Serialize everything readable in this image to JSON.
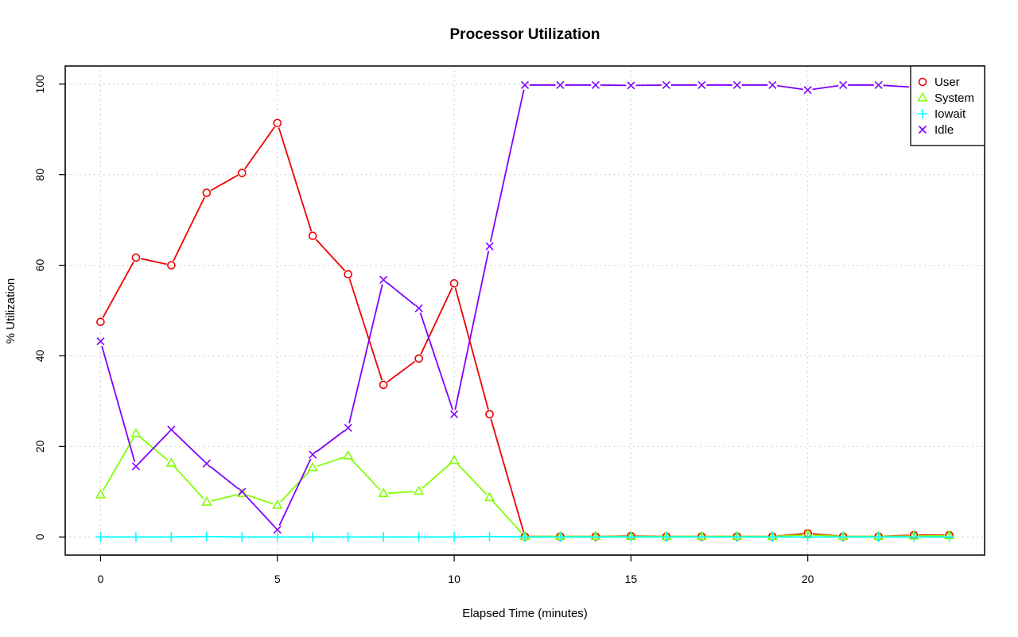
{
  "chart_data": {
    "type": "line",
    "title": "Processor Utilization",
    "xlabel": "Elapsed Time (minutes)",
    "ylabel": "% Utilization",
    "xlim": [
      -1,
      25
    ],
    "ylim": [
      -4,
      104
    ],
    "xticks": [
      0,
      5,
      10,
      15,
      20
    ],
    "yticks": [
      0,
      20,
      40,
      60,
      80,
      100
    ],
    "grid": true,
    "legend_position": "top-right",
    "x": [
      0,
      1,
      2,
      3,
      4,
      5,
      6,
      7,
      8,
      9,
      10,
      11,
      12,
      13,
      14,
      15,
      16,
      17,
      18,
      19,
      20,
      21,
      22,
      23,
      24
    ],
    "series": [
      {
        "name": "User",
        "color": "#ee0000",
        "marker": "circle",
        "values": [
          47.5,
          61.7,
          60.0,
          76.0,
          80.4,
          91.4,
          66.5,
          58.0,
          33.6,
          39.4,
          56.0,
          27.1,
          0.1,
          0.1,
          0.1,
          0.2,
          0.1,
          0.1,
          0.1,
          0.1,
          0.8,
          0.1,
          0.1,
          0.4,
          0.4
        ]
      },
      {
        "name": "System",
        "color": "#80ff00",
        "marker": "triangle",
        "values": [
          9.3,
          22.8,
          16.3,
          7.7,
          9.6,
          7.0,
          15.3,
          17.9,
          9.6,
          10.1,
          16.9,
          8.7,
          0.1,
          0.1,
          0.1,
          0.1,
          0.1,
          0.1,
          0.1,
          0.1,
          0.5,
          0.1,
          0.1,
          0.2,
          0.3
        ]
      },
      {
        "name": "Iowait",
        "color": "#00ffff",
        "marker": "plus",
        "values": [
          0.0,
          0.0,
          0.0,
          0.1,
          0.0,
          0.0,
          0.0,
          0.0,
          0.0,
          0.0,
          0.0,
          0.1,
          0.0,
          0.0,
          0.0,
          0.0,
          0.0,
          0.0,
          0.0,
          0.0,
          0.0,
          0.0,
          0.0,
          0.0,
          0.0
        ]
      },
      {
        "name": "Idle",
        "color": "#8000ff",
        "marker": "x",
        "values": [
          43.2,
          15.6,
          23.7,
          16.2,
          10.0,
          1.6,
          18.2,
          24.1,
          56.8,
          50.5,
          27.1,
          64.2,
          99.8,
          99.8,
          99.8,
          99.7,
          99.8,
          99.8,
          99.8,
          99.8,
          98.7,
          99.8,
          99.8,
          99.3,
          99.2
        ]
      }
    ]
  }
}
